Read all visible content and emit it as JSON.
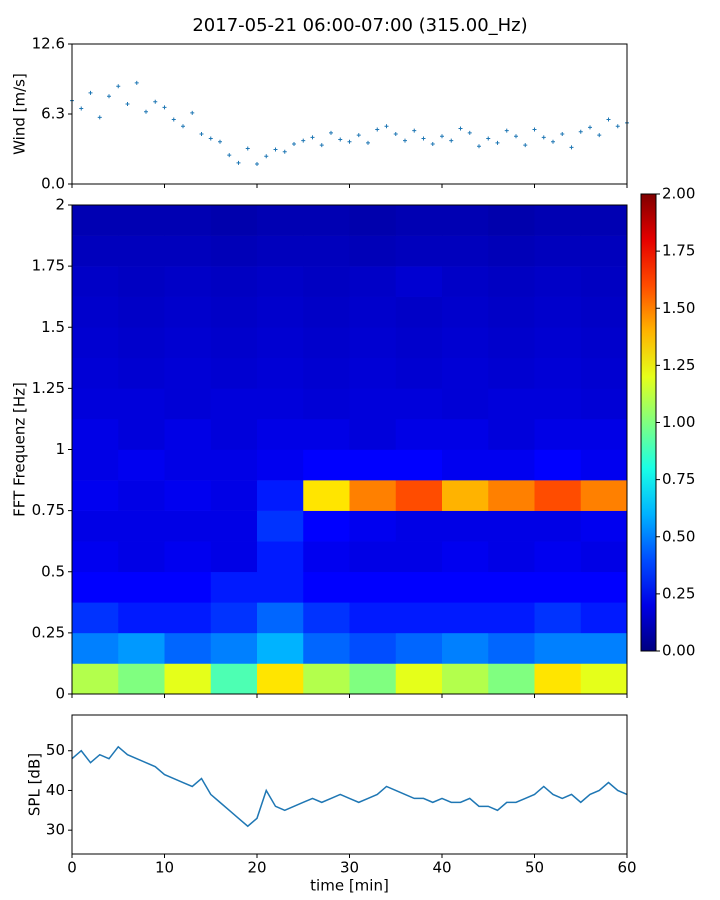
{
  "title": "2017-05-21 06:00-07:00 (315.00_Hz)",
  "chart_data": [
    {
      "type": "scatter",
      "ylabel": "Wind [m/s]",
      "color": "#1f77b4",
      "xlim": [
        0,
        60
      ],
      "ylim": [
        0,
        12.6
      ],
      "yticks": [
        {
          "value": 0,
          "label": "0.0"
        },
        6.3,
        12.6
      ],
      "x": [
        0,
        1,
        2,
        3,
        4,
        5,
        6,
        7,
        8,
        9,
        10,
        11,
        12,
        13,
        14,
        15,
        16,
        17,
        18,
        19,
        20,
        21,
        22,
        23,
        24,
        25,
        26,
        27,
        28,
        29,
        30,
        31,
        32,
        33,
        34,
        35,
        36,
        37,
        38,
        39,
        40,
        41,
        42,
        43,
        44,
        45,
        46,
        47,
        48,
        49,
        50,
        51,
        52,
        53,
        54,
        55,
        56,
        57,
        58,
        59,
        60
      ],
      "values": [
        7.5,
        6.8,
        8.2,
        6.0,
        7.9,
        8.8,
        7.2,
        9.1,
        6.5,
        7.4,
        6.9,
        5.8,
        5.2,
        6.4,
        4.5,
        4.1,
        3.8,
        2.6,
        1.9,
        3.2,
        1.8,
        2.5,
        3.1,
        2.9,
        3.6,
        3.9,
        4.2,
        3.5,
        4.6,
        4.0,
        3.8,
        4.4,
        3.7,
        4.9,
        5.2,
        4.5,
        3.9,
        4.8,
        4.1,
        3.6,
        4.3,
        3.9,
        5.0,
        4.6,
        3.4,
        4.1,
        3.7,
        4.8,
        4.3,
        3.5,
        4.9,
        4.2,
        3.8,
        4.5,
        3.3,
        4.7,
        5.1,
        4.4,
        5.8,
        5.2,
        5.5
      ]
    },
    {
      "type": "heatmap",
      "ylabel": "FFT Frequenz [Hz]",
      "colormap": "jet",
      "xlim": [
        0,
        60
      ],
      "ylim": [
        0,
        2
      ],
      "yticks": [
        0,
        0.25,
        0.5,
        0.75,
        1,
        1.25,
        1.5,
        1.75,
        2
      ],
      "clim": [
        0,
        2
      ],
      "cticks": [
        {
          "value": 0,
          "label": "0.00"
        },
        {
          "value": 0.25,
          "label": "0.25"
        },
        {
          "value": 0.5,
          "label": "0.50"
        },
        {
          "value": 0.75,
          "label": "0.75"
        },
        {
          "value": 1,
          "label": "1.00"
        },
        {
          "value": 1.25,
          "label": "1.25"
        },
        {
          "value": 1.5,
          "label": "1.50"
        },
        {
          "value": 1.75,
          "label": "1.75"
        },
        {
          "value": 2,
          "label": "2.00"
        }
      ],
      "x_bins": [
        0,
        5,
        10,
        15,
        20,
        25,
        30,
        35,
        40,
        45,
        50,
        55,
        60
      ],
      "y_bins": [
        0,
        0.125,
        0.25,
        0.375,
        0.5,
        0.625,
        0.75,
        0.875,
        1,
        1.125,
        1.25,
        1.375,
        1.5,
        1.625,
        1.75,
        1.875,
        2
      ],
      "values": [
        [
          1.1,
          1.0,
          1.2,
          0.9,
          1.3,
          1.1,
          1.0,
          1.2,
          1.1,
          1.0,
          1.3,
          1.2
        ],
        [
          0.5,
          0.55,
          0.45,
          0.5,
          0.6,
          0.45,
          0.4,
          0.45,
          0.5,
          0.45,
          0.5,
          0.5
        ],
        [
          0.35,
          0.3,
          0.3,
          0.35,
          0.45,
          0.35,
          0.3,
          0.3,
          0.3,
          0.3,
          0.35,
          0.3
        ],
        [
          0.25,
          0.25,
          0.25,
          0.3,
          0.3,
          0.25,
          0.25,
          0.25,
          0.25,
          0.25,
          0.25,
          0.25
        ],
        [
          0.22,
          0.2,
          0.22,
          0.2,
          0.3,
          0.22,
          0.2,
          0.2,
          0.22,
          0.2,
          0.22,
          0.2
        ],
        [
          0.2,
          0.2,
          0.2,
          0.2,
          0.35,
          0.25,
          0.22,
          0.2,
          0.2,
          0.2,
          0.2,
          0.22
        ],
        [
          0.22,
          0.2,
          0.22,
          0.2,
          0.3,
          1.3,
          1.5,
          1.6,
          1.4,
          1.5,
          1.6,
          1.5
        ],
        [
          0.2,
          0.22,
          0.2,
          0.2,
          0.22,
          0.25,
          0.25,
          0.25,
          0.22,
          0.22,
          0.25,
          0.22
        ],
        [
          0.2,
          0.18,
          0.2,
          0.18,
          0.2,
          0.2,
          0.18,
          0.2,
          0.2,
          0.18,
          0.2,
          0.2
        ],
        [
          0.18,
          0.18,
          0.17,
          0.18,
          0.18,
          0.17,
          0.18,
          0.18,
          0.17,
          0.18,
          0.18,
          0.17
        ],
        [
          0.17,
          0.16,
          0.17,
          0.16,
          0.17,
          0.16,
          0.17,
          0.16,
          0.17,
          0.16,
          0.17,
          0.16
        ],
        [
          0.16,
          0.15,
          0.16,
          0.15,
          0.16,
          0.15,
          0.16,
          0.15,
          0.16,
          0.15,
          0.16,
          0.15
        ],
        [
          0.15,
          0.14,
          0.15,
          0.14,
          0.15,
          0.14,
          0.15,
          0.14,
          0.15,
          0.14,
          0.15,
          0.14
        ],
        [
          0.14,
          0.13,
          0.14,
          0.13,
          0.14,
          0.13,
          0.14,
          0.16,
          0.14,
          0.13,
          0.14,
          0.13
        ],
        [
          0.12,
          0.12,
          0.12,
          0.11,
          0.12,
          0.12,
          0.11,
          0.12,
          0.12,
          0.11,
          0.12,
          0.12
        ],
        [
          0.1,
          0.1,
          0.1,
          0.09,
          0.1,
          0.1,
          0.09,
          0.1,
          0.1,
          0.09,
          0.1,
          0.1
        ]
      ]
    },
    {
      "type": "line",
      "ylabel": "SPL [dB]",
      "xlabel": "time [min]",
      "color": "#1f77b4",
      "xlim": [
        0,
        60
      ],
      "ylim": [
        24,
        59
      ],
      "xticks": [
        0,
        10,
        20,
        30,
        40,
        50,
        60
      ],
      "yticks": [
        30,
        40,
        50
      ],
      "x": [
        0,
        1,
        2,
        3,
        4,
        5,
        6,
        7,
        8,
        9,
        10,
        11,
        12,
        13,
        14,
        15,
        16,
        17,
        18,
        19,
        20,
        21,
        22,
        23,
        24,
        25,
        26,
        27,
        28,
        29,
        30,
        31,
        32,
        33,
        34,
        35,
        36,
        37,
        38,
        39,
        40,
        41,
        42,
        43,
        44,
        45,
        46,
        47,
        48,
        49,
        50,
        51,
        52,
        53,
        54,
        55,
        56,
        57,
        58,
        59,
        60
      ],
      "values": [
        48,
        50,
        47,
        49,
        48,
        51,
        49,
        48,
        47,
        46,
        44,
        43,
        42,
        41,
        43,
        39,
        37,
        35,
        33,
        31,
        33,
        40,
        36,
        35,
        36,
        37,
        38,
        37,
        38,
        39,
        38,
        37,
        38,
        39,
        41,
        40,
        39,
        38,
        38,
        37,
        38,
        37,
        37,
        38,
        36,
        36,
        35,
        37,
        37,
        38,
        39,
        41,
        39,
        38,
        39,
        37,
        39,
        40,
        42,
        40,
        39
      ]
    }
  ]
}
